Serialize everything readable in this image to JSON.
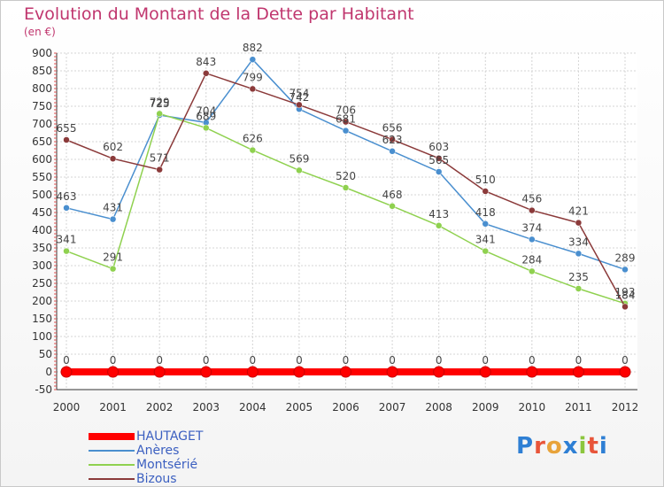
{
  "title": "Evolution du Montant de la Dette par Habitant",
  "subtitle": "(en €)",
  "logo_text": "Proxiti",
  "logo_colors": [
    "#2e7fd4",
    "#e8553a",
    "#e8a33a",
    "#2e7fd4",
    "#8cc63e",
    "#e8553a",
    "#2e7fd4"
  ],
  "chart_data": {
    "type": "line",
    "x": [
      "2000",
      "2001",
      "2002",
      "2003",
      "2004",
      "2005",
      "2006",
      "2007",
      "2008",
      "2009",
      "2010",
      "2011",
      "2012"
    ],
    "ylim": [
      -50,
      900
    ],
    "yticks": [
      "-50",
      "0",
      "50",
      "100",
      "150",
      "200",
      "250",
      "300",
      "350",
      "400",
      "450",
      "500",
      "550",
      "600",
      "650",
      "700",
      "750",
      "800",
      "850",
      "900"
    ],
    "grid": true,
    "legend_position": "bottom-left",
    "series": [
      {
        "name": "HAUTAGET",
        "color": "#ff0000",
        "values": [
          0,
          0,
          0,
          0,
          0,
          0,
          0,
          0,
          0,
          0,
          0,
          0,
          0
        ],
        "labels": [
          "0",
          "0",
          "0",
          "0",
          "0",
          "0",
          "0",
          "0",
          "0",
          "0",
          "0",
          "0",
          "0"
        ]
      },
      {
        "name": "Anères",
        "color": "#4a8fcf",
        "values": [
          463,
          431,
          725,
          704,
          882,
          742,
          681,
          623,
          565,
          418,
          374,
          334,
          289
        ],
        "labels": [
          "463",
          "431",
          "725",
          "704",
          "882",
          "742",
          "681",
          "623",
          "565",
          "418",
          "374",
          "334",
          "289"
        ]
      },
      {
        "name": "Montsérié",
        "color": "#8fd14f",
        "values": [
          341,
          291,
          729,
          689,
          626,
          569,
          520,
          468,
          413,
          341,
          284,
          235,
          193
        ],
        "labels": [
          "341",
          "291",
          "729",
          "689",
          "626",
          "569",
          "520",
          "468",
          "413",
          "341",
          "284",
          "235",
          "193"
        ]
      },
      {
        "name": "Bizous",
        "color": "#8b3a3a",
        "values": [
          655,
          602,
          571,
          843,
          799,
          754,
          706,
          656,
          603,
          510,
          456,
          421,
          184
        ],
        "labels": [
          "655",
          "602",
          "571",
          "843",
          "799",
          "754",
          "706",
          "656",
          "603",
          "510",
          "456",
          "421",
          "184"
        ]
      }
    ]
  }
}
